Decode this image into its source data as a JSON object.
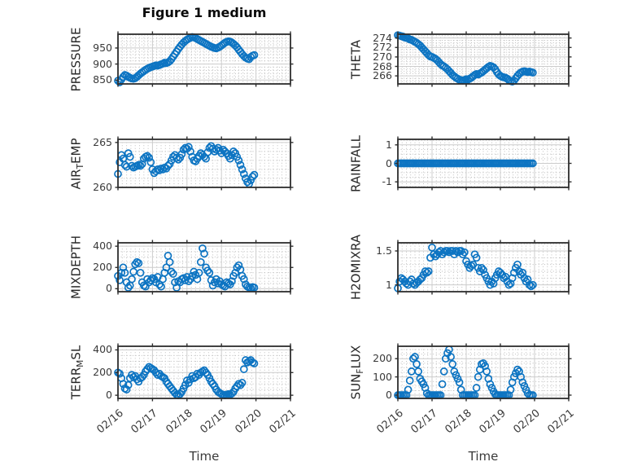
{
  "title": "Figure 1 medium",
  "style": {
    "background": "#ffffff",
    "marker_color": "#0d74c2",
    "frame_color": "#2e2e2e",
    "major_grid_color": "#cccccc",
    "minor_grid_color": "#bfbfbf",
    "tick_color": "#2e2e2e",
    "tick_label_color": "#3a3a3a",
    "axis_label_color": "#262626"
  },
  "x_axis": {
    "label": "Time",
    "lim": [
      0,
      5
    ],
    "tick_labels": [
      "02/16",
      "02/17",
      "02/18",
      "02/19",
      "02/20",
      "02/21"
    ],
    "minor_divisions": 8
  },
  "chart_data": [
    {
      "type": "scatter",
      "name": "PRESSURE",
      "ylabel_pre": "PRESSURE",
      "ylabel_sub": "",
      "ylabel_post": "",
      "ylim": [
        838,
        993
      ],
      "yticks": [
        850,
        900,
        950
      ],
      "yminor": 10,
      "x0": 0,
      "dx": 0.05,
      "values": [
        848,
        843,
        852,
        860,
        866,
        864,
        860,
        857,
        855,
        854,
        856,
        860,
        865,
        870,
        874,
        878,
        882,
        885,
        888,
        890,
        892,
        894,
        896,
        895,
        897,
        899,
        901,
        904,
        903,
        905,
        909,
        915,
        923,
        931,
        939,
        947,
        954,
        961,
        967,
        972,
        976,
        979,
        982,
        984,
        983,
        981,
        978,
        975,
        972,
        969,
        966,
        963,
        960,
        957,
        954,
        952,
        950,
        949,
        951,
        954,
        958,
        962,
        966,
        969,
        971,
        970,
        967,
        963,
        958,
        952,
        945,
        938,
        931,
        925,
        920,
        917,
        915,
        922,
        926,
        928
      ]
    },
    {
      "type": "scatter",
      "name": "THETA",
      "ylabel_pre": "THETA",
      "ylabel_sub": "",
      "ylabel_post": "",
      "ylim": [
        264.3,
        274.8
      ],
      "yticks": [
        266,
        268,
        270,
        272,
        274
      ],
      "yminor": 0.5,
      "x0": 0,
      "dx": 0.05,
      "values": [
        274.6,
        274.5,
        274.4,
        274.3,
        274.1,
        274.0,
        273.9,
        273.7,
        273.6,
        273.4,
        273.2,
        273.0,
        272.7,
        272.4,
        272.0,
        271.6,
        271.2,
        270.8,
        270.4,
        270.1,
        270.0,
        269.8,
        269.6,
        269.3,
        268.9,
        268.5,
        268.2,
        268.0,
        267.7,
        267.4,
        267.0,
        266.6,
        266.2,
        265.9,
        265.6,
        265.4,
        265.2,
        265.1,
        265.0,
        265.1,
        265.3,
        265.2,
        265.4,
        265.6,
        265.9,
        266.2,
        266.4,
        266.3,
        266.5,
        266.7,
        267.0,
        267.3,
        267.6,
        267.9,
        268.1,
        268.0,
        267.8,
        267.4,
        266.8,
        266.3,
        266.0,
        265.8,
        265.7,
        265.6,
        265.4,
        265.1,
        264.9,
        264.8,
        265.0,
        265.5,
        266.0,
        266.4,
        266.7,
        266.9,
        267.0,
        266.9,
        266.8,
        266.9,
        266.8,
        266.7
      ]
    },
    {
      "type": "scatter",
      "name": "AIR_TEMP",
      "ylabel_pre": "AIR",
      "ylabel_sub": "T",
      "ylabel_post": "EMP",
      "ylim": [
        260,
        265.35
      ],
      "yticks": [
        260,
        265
      ],
      "yminor": 1,
      "x0": 0,
      "dx": 0.05,
      "values": [
        261.5,
        262.8,
        263.6,
        263.2,
        262.5,
        262.3,
        263.8,
        263.4,
        262.4,
        262.2,
        262.3,
        262.4,
        262.5,
        262.4,
        262.6,
        263.2,
        263.4,
        263.5,
        263.3,
        262.8,
        262.0,
        261.6,
        261.8,
        262.0,
        261.9,
        262.1,
        262.0,
        262.2,
        262.1,
        262.4,
        262.6,
        263.0,
        263.4,
        263.6,
        263.3,
        263.1,
        263.3,
        263.7,
        264.2,
        264.4,
        264.3,
        264.5,
        264.0,
        263.4,
        263.0,
        262.9,
        263.2,
        263.5,
        263.8,
        263.6,
        263.4,
        263.2,
        263.9,
        264.4,
        264.6,
        264.3,
        264.0,
        264.2,
        264.4,
        264.1,
        263.8,
        264.2,
        264.0,
        263.8,
        263.5,
        263.2,
        263.6,
        264.0,
        263.8,
        263.4,
        263.0,
        262.5,
        262.0,
        261.5,
        261.0,
        260.6,
        260.4,
        260.8,
        261.2,
        261.4
      ]
    },
    {
      "type": "scatter",
      "name": "RAINFALL",
      "ylabel_pre": "RAINFALL",
      "ylabel_sub": "",
      "ylabel_post": "",
      "ylim": [
        -1.3,
        1.3
      ],
      "yticks": [
        -1,
        0,
        1
      ],
      "yminor": 0.25,
      "x0": 0,
      "dx": 0.05,
      "values": [
        0,
        0,
        0,
        0,
        0,
        0,
        0,
        0,
        0,
        0,
        0,
        0,
        0,
        0,
        0,
        0,
        0,
        0,
        0,
        0,
        0,
        0,
        0,
        0,
        0,
        0,
        0,
        0,
        0,
        0,
        0,
        0,
        0,
        0,
        0,
        0,
        0,
        0,
        0,
        0,
        0,
        0,
        0,
        0,
        0,
        0,
        0,
        0,
        0,
        0,
        0,
        0,
        0,
        0,
        0,
        0,
        0,
        0,
        0,
        0,
        0,
        0,
        0,
        0,
        0,
        0,
        0,
        0,
        0,
        0,
        0,
        0,
        0,
        0,
        0,
        0,
        0,
        0,
        0,
        0
      ]
    },
    {
      "type": "scatter",
      "name": "MIXDEPTH",
      "ylabel_pre": "MIXDEPTH",
      "ylabel_sub": "",
      "ylabel_post": "",
      "ylim": [
        -28,
        432
      ],
      "yticks": [
        0,
        200,
        400
      ],
      "yminor": 50,
      "x0": 0,
      "dx": 0.05,
      "values": [
        120,
        80,
        150,
        200,
        150,
        60,
        10,
        30,
        90,
        160,
        230,
        250,
        240,
        150,
        60,
        30,
        20,
        90,
        60,
        80,
        100,
        90,
        60,
        110,
        40,
        20,
        90,
        150,
        200,
        310,
        250,
        160,
        140,
        60,
        10,
        70,
        60,
        90,
        100,
        80,
        110,
        70,
        90,
        120,
        160,
        130,
        90,
        150,
        250,
        380,
        330,
        200,
        170,
        150,
        80,
        30,
        60,
        90,
        50,
        70,
        40,
        30,
        20,
        60,
        50,
        40,
        70,
        120,
        150,
        200,
        220,
        180,
        120,
        90,
        40,
        20,
        10,
        5,
        15,
        10
      ]
    },
    {
      "type": "scatter",
      "name": "H2OMIXRA",
      "ylabel_pre": "H2OMIXRA",
      "ylabel_sub": "",
      "ylabel_post": "",
      "ylim": [
        0.9,
        1.62
      ],
      "yticks": [
        1,
        1.5
      ],
      "yminor": 0.1,
      "x0": 0,
      "dx": 0.05,
      "values": [
        0.95,
        1.05,
        1.1,
        1.08,
        1.05,
        1.02,
        1.0,
        1.05,
        1.08,
        1.02,
        1.0,
        1.03,
        1.05,
        1.08,
        1.1,
        1.15,
        1.2,
        1.18,
        1.2,
        1.4,
        1.55,
        1.45,
        1.42,
        1.45,
        1.48,
        1.5,
        1.45,
        1.48,
        1.5,
        1.5,
        1.48,
        1.5,
        1.5,
        1.45,
        1.5,
        1.48,
        1.5,
        1.5,
        1.45,
        1.48,
        1.35,
        1.3,
        1.25,
        1.28,
        1.3,
        1.45,
        1.4,
        1.25,
        1.2,
        1.25,
        1.22,
        1.15,
        1.1,
        1.05,
        1.0,
        1.05,
        1.02,
        1.1,
        1.15,
        1.2,
        1.18,
        1.15,
        1.1,
        1.12,
        1.05,
        1.0,
        1.02,
        1.1,
        1.18,
        1.25,
        1.3,
        1.2,
        1.15,
        1.18,
        1.1,
        1.05,
        1.08,
        1.0,
        0.98,
        1.0
      ]
    },
    {
      "type": "scatter",
      "name": "TERR_MSL",
      "ylabel_pre": "TERR",
      "ylabel_sub": "M",
      "ylabel_post": "SL",
      "ylim": [
        -28,
        432
      ],
      "yticks": [
        0,
        200,
        400
      ],
      "yminor": 50,
      "x0": 0,
      "dx": 0.05,
      "values": [
        200,
        190,
        150,
        100,
        60,
        50,
        90,
        150,
        180,
        160,
        170,
        140,
        120,
        150,
        160,
        180,
        210,
        230,
        250,
        240,
        230,
        220,
        200,
        180,
        190,
        170,
        160,
        150,
        120,
        100,
        80,
        60,
        40,
        20,
        5,
        0,
        10,
        30,
        60,
        90,
        130,
        110,
        140,
        170,
        150,
        160,
        190,
        180,
        200,
        210,
        220,
        200,
        180,
        150,
        120,
        100,
        80,
        50,
        30,
        20,
        10,
        5,
        0,
        5,
        10,
        5,
        15,
        30,
        60,
        80,
        100,
        90,
        110,
        230,
        310,
        290,
        300,
        310,
        290,
        280
      ]
    },
    {
      "type": "scatter",
      "name": "SUN_FLUX",
      "ylabel_pre": "SUN",
      "ylabel_sub": "F",
      "ylabel_post": "LUX",
      "ylim": [
        -18,
        268
      ],
      "yticks": [
        0,
        100,
        200
      ],
      "yminor": 25,
      "x0": 0,
      "dx": 0.05,
      "values": [
        0,
        0,
        0,
        0,
        0,
        0,
        30,
        80,
        130,
        200,
        210,
        170,
        130,
        90,
        75,
        60,
        40,
        10,
        0,
        0,
        0,
        0,
        0,
        0,
        0,
        0,
        60,
        130,
        200,
        230,
        250,
        210,
        170,
        130,
        110,
        90,
        70,
        30,
        0,
        0,
        0,
        0,
        0,
        0,
        0,
        0,
        40,
        100,
        140,
        170,
        175,
        160,
        130,
        90,
        60,
        40,
        20,
        5,
        0,
        0,
        0,
        0,
        0,
        0,
        0,
        0,
        30,
        70,
        100,
        120,
        140,
        130,
        100,
        70,
        50,
        30,
        10,
        0,
        0,
        0
      ]
    }
  ]
}
